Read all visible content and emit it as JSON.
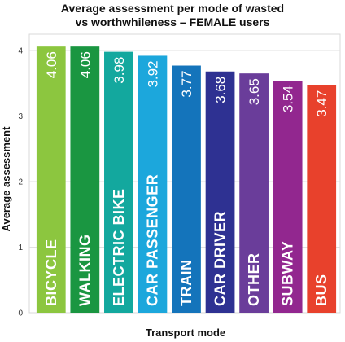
{
  "chart_data": {
    "type": "bar",
    "title": "Average assessment per mode of wasted vs worthwhileness – FEMALE users",
    "title_lines": [
      "Average assessment per mode of wasted",
      "vs worthwhileness – FEMALE users"
    ],
    "xlabel": "Transport mode",
    "ylabel": "Average assessment",
    "ylim": [
      0,
      4.3
    ],
    "yticks": [
      0,
      1,
      2,
      3,
      4
    ],
    "grid": true,
    "categories": [
      "BICYCLE",
      "WALKING",
      "ELECTRIC BIKE",
      "CAR PASSENGER",
      "TRAIN",
      "CAR DRIVER",
      "OTHER",
      "SUBWAY",
      "BUS"
    ],
    "values": [
      4.06,
      4.06,
      3.98,
      3.92,
      3.77,
      3.68,
      3.65,
      3.54,
      3.47
    ],
    "value_labels": [
      "4.06",
      "4.06",
      "3.98",
      "3.92",
      "3.77",
      "3.68",
      "3.65",
      "3.54",
      "3.47"
    ],
    "colors": [
      "#8cc63f",
      "#1a9641",
      "#13a89e",
      "#1ca7dc",
      "#1474bb",
      "#2e3192",
      "#6a3d9a",
      "#92278f",
      "#e8412c"
    ]
  }
}
